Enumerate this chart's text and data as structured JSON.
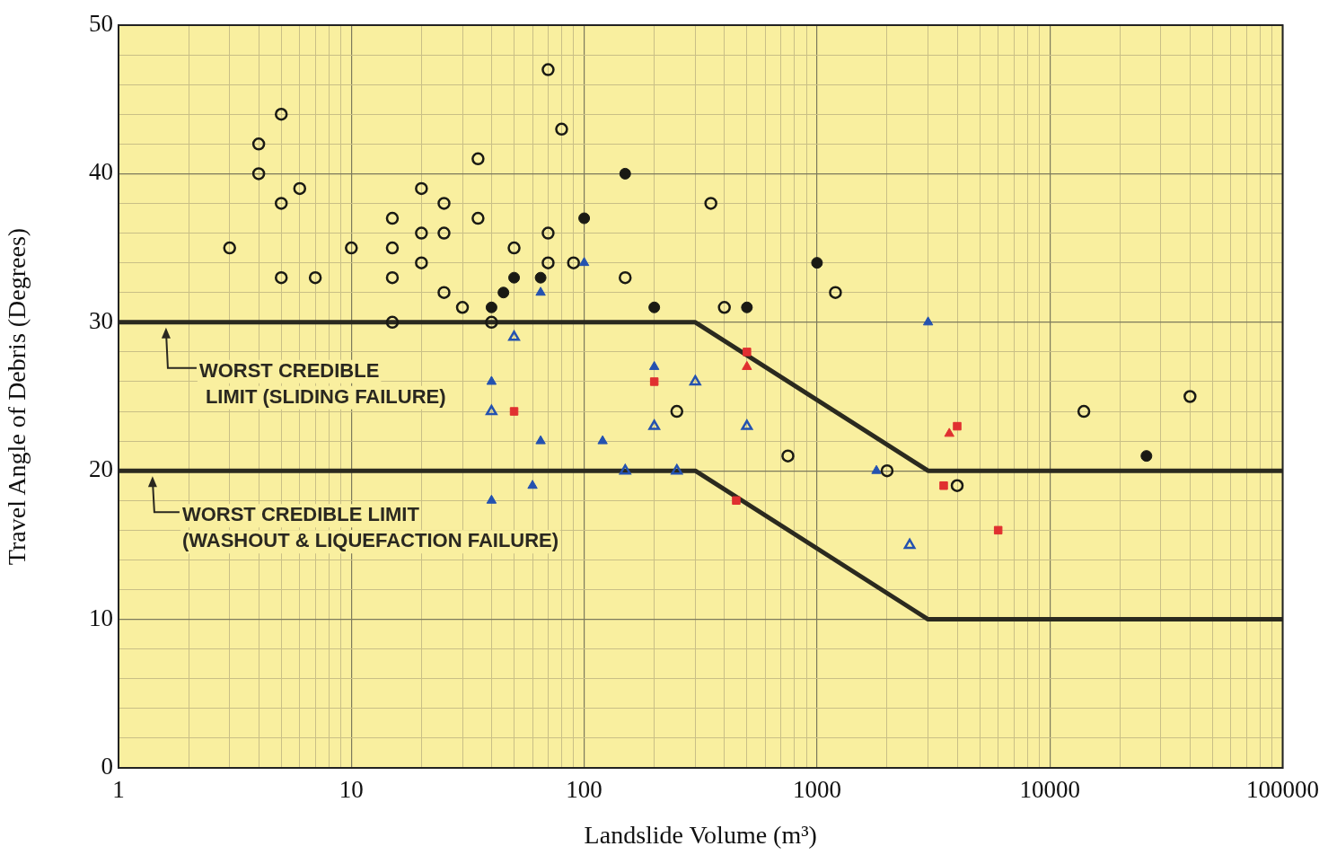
{
  "chart_data": {
    "type": "scatter",
    "xlabel": "Landslide Volume (m³)",
    "ylabel": "Travel Angle of Debris (Degrees)",
    "log": "x",
    "grid": true,
    "legend": false,
    "xlim": [
      1,
      100000
    ],
    "xticks": [
      1,
      {
        "value": 2,
        "label": null
      },
      {
        "value": 3,
        "label": null
      },
      {
        "value": 4,
        "label": null
      },
      {
        "value": 5,
        "label": null
      },
      {
        "value": 6,
        "label": null
      },
      {
        "value": 7,
        "label": null
      },
      {
        "value": 8,
        "label": null
      },
      {
        "value": 9,
        "label": null
      },
      10,
      {
        "value": 20,
        "label": null
      },
      {
        "value": 30,
        "label": null
      },
      {
        "value": 40,
        "label": null
      },
      {
        "value": 50,
        "label": null
      },
      {
        "value": 60,
        "label": null
      },
      {
        "value": 70,
        "label": null
      },
      {
        "value": 80,
        "label": null
      },
      {
        "value": 90,
        "label": null
      },
      100,
      {
        "value": 200,
        "label": null
      },
      {
        "value": 300,
        "label": null
      },
      {
        "value": 400,
        "label": null
      },
      {
        "value": 500,
        "label": null
      },
      {
        "value": 600,
        "label": null
      },
      {
        "value": 700,
        "label": null
      },
      {
        "value": 800,
        "label": null
      },
      {
        "value": 900,
        "label": null
      },
      1000,
      {
        "value": 2000,
        "label": null
      },
      {
        "value": 3000,
        "label": null
      },
      {
        "value": 4000,
        "label": null
      },
      {
        "value": 5000,
        "label": null
      },
      {
        "value": 6000,
        "label": null
      },
      {
        "value": 7000,
        "label": null
      },
      {
        "value": 8000,
        "label": null
      },
      {
        "value": 9000,
        "label": null
      },
      10000,
      {
        "value": 20000,
        "label": null
      },
      {
        "value": 30000,
        "label": null
      },
      {
        "value": 40000,
        "label": null
      },
      {
        "value": 50000,
        "label": null
      },
      {
        "value": 60000,
        "label": null
      },
      {
        "value": 70000,
        "label": null
      },
      {
        "value": 80000,
        "label": null
      },
      {
        "value": 90000,
        "label": null
      },
      100000
    ],
    "ylim": [
      0,
      50
    ],
    "yticks": [
      0,
      {
        "value": 2,
        "label": null
      },
      {
        "value": 4,
        "label": null
      },
      {
        "value": 6,
        "label": null
      },
      {
        "value": 8,
        "label": null
      },
      10,
      {
        "value": 12,
        "label": null
      },
      {
        "value": 14,
        "label": null
      },
      {
        "value": 16,
        "label": null
      },
      {
        "value": 18,
        "label": null
      },
      20,
      {
        "value": 22,
        "label": null
      },
      {
        "value": 24,
        "label": null
      },
      {
        "value": 26,
        "label": null
      },
      {
        "value": 28,
        "label": null
      },
      30,
      {
        "value": 32,
        "label": null
      },
      {
        "value": 34,
        "label": null
      },
      {
        "value": 36,
        "label": null
      },
      {
        "value": 38,
        "label": null
      },
      40,
      {
        "value": 42,
        "label": null
      },
      {
        "value": 44,
        "label": null
      },
      {
        "value": 46,
        "label": null
      },
      {
        "value": 48,
        "label": null
      },
      50
    ],
    "series": [
      {
        "type": "line",
        "color": "#2b2a1f",
        "marker": "none",
        "line_style": "solid",
        "x": [
          1,
          300,
          3000,
          100000
        ],
        "values": [
          30,
          30,
          20,
          20
        ]
      },
      {
        "type": "line",
        "color": "#2b2a1f",
        "marker": "none",
        "line_style": "solid",
        "x": [
          1,
          300,
          3000,
          100000
        ],
        "values": [
          20,
          20,
          10,
          10
        ]
      },
      {
        "color": "#1a1a14",
        "marker": "circle",
        "x": [
          3,
          4,
          4,
          5,
          5,
          5,
          6,
          7,
          10,
          15,
          15,
          15,
          15,
          20,
          20,
          20,
          25,
          25,
          25,
          30,
          35,
          35,
          40,
          50,
          70,
          70,
          70,
          80,
          90,
          150,
          250,
          350,
          400,
          750,
          1200,
          2000,
          4000,
          14000,
          40000
        ],
        "values": [
          35,
          42,
          40,
          44,
          38,
          33,
          39,
          33,
          35,
          37,
          35,
          33,
          30,
          39,
          36,
          34,
          38,
          36,
          32,
          31,
          41,
          37,
          30,
          35,
          47,
          36,
          34,
          43,
          34,
          33,
          24,
          38,
          31,
          21,
          32,
          20,
          19,
          24,
          25
        ]
      },
      {
        "color": "#1a1a14",
        "marker": "circle",
        "x": [
          40,
          45,
          50,
          65,
          100,
          150,
          200,
          500,
          1000,
          26000
        ],
        "values": [
          31,
          32,
          33,
          33,
          37,
          40,
          31,
          31,
          34,
          21
        ]
      },
      {
        "color": "#2452b0",
        "marker": "triangle",
        "x": [
          50,
          40,
          150,
          200,
          250,
          300,
          500,
          2500
        ],
        "values": [
          29,
          24,
          20,
          23,
          20,
          26,
          23,
          15
        ]
      },
      {
        "color": "#2452b0",
        "marker": "triangle",
        "x": [
          100,
          65,
          40,
          40,
          65,
          60,
          120,
          200,
          1800,
          3000
        ],
        "values": [
          34,
          32,
          26,
          18,
          22,
          19,
          22,
          27,
          20,
          30
        ]
      },
      {
        "color": "#e03030",
        "marker": "square",
        "x": [
          50,
          200,
          500,
          450,
          3500,
          4000,
          6000
        ],
        "values": [
          24,
          26,
          28,
          18,
          19,
          23,
          16
        ]
      },
      {
        "color": "#e03030",
        "marker": "triangle",
        "x": [
          500,
          3700
        ],
        "values": [
          27,
          22.5
        ]
      }
    ],
    "annotations": [
      {
        "text": "WORST CREDIBLE\nLIMIT (SLIDING FAILURE)",
        "x": 1.6,
        "y": 30
      },
      {
        "text": "WORST CREDIBLE LIMIT\n(WASHOUT & LIQUEFACTION FAILURE)",
        "x": 1.4,
        "y": 20
      }
    ]
  }
}
